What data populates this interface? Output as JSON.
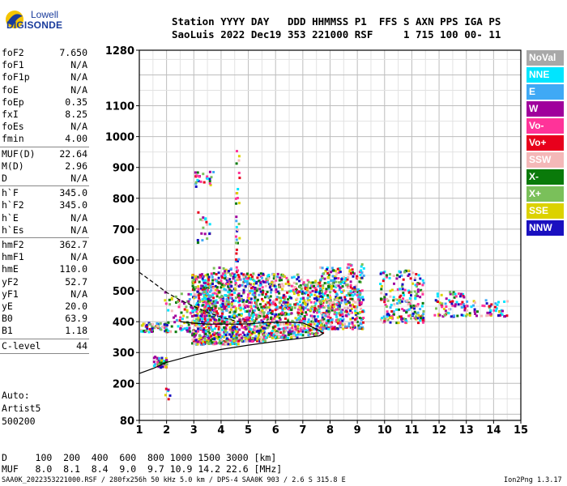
{
  "logo": {
    "line1": "Lowell",
    "line2": "DIGISONDE"
  },
  "header": {
    "line1": "Station YYYY DAY   DDD HHMMSS P1  FFS S AXN PPS IGA PS",
    "line2": "SaoLuis 2022 Dec19 353 221000 RSF     1 715 100 00- 11"
  },
  "params_group1": [
    {
      "k": "foF2",
      "v": "7.650"
    },
    {
      "k": "foF1",
      "v": "N/A"
    },
    {
      "k": "foF1p",
      "v": "N/A"
    },
    {
      "k": "foE",
      "v": "N/A"
    },
    {
      "k": "foEp",
      "v": "0.35"
    },
    {
      "k": "fxI",
      "v": "8.25"
    },
    {
      "k": "foEs",
      "v": "N/A"
    },
    {
      "k": "fmin",
      "v": "4.00"
    }
  ],
  "params_group2": [
    {
      "k": "MUF(D)",
      "v": "22.64"
    },
    {
      "k": "M(D)",
      "v": "2.96"
    },
    {
      "k": "D",
      "v": "N/A"
    }
  ],
  "params_group3": [
    {
      "k": "h`F",
      "v": "345.0"
    },
    {
      "k": "h`F2",
      "v": "345.0"
    },
    {
      "k": "h`E",
      "v": "N/A"
    },
    {
      "k": "h`Es",
      "v": "N/A"
    }
  ],
  "params_group4": [
    {
      "k": "hmF2",
      "v": "362.7"
    },
    {
      "k": "hmF1",
      "v": "N/A"
    },
    {
      "k": "hmE",
      "v": "110.0"
    },
    {
      "k": "yF2",
      "v": "52.7"
    },
    {
      "k": "yF1",
      "v": "N/A"
    },
    {
      "k": "yE",
      "v": "20.0"
    },
    {
      "k": "B0",
      "v": "63.9"
    },
    {
      "k": "B1",
      "v": "1.18"
    }
  ],
  "params_group5": [
    {
      "k": "C-level",
      "v": "44"
    }
  ],
  "auto": {
    "line1": "Auto:",
    "line2": "Artist5",
    "line3": "500200"
  },
  "muf_table": {
    "d_line": "D     100  200  400  600  800 1000 1500 3000 [km]",
    "muf_line": "MUF   8.0  8.1  8.4  9.0  9.7 10.9 14.2 22.6 [MHz]"
  },
  "bottom": {
    "left": "SAA0K_2022353221000.RSF / 280fx256h 50 kHz 5.0 km / DPS-4 SAA0K 903 / 2.6 S 315.8 E",
    "right": "Ion2Png 1.3.17"
  },
  "legend": [
    {
      "label": "NoVal",
      "color": "#a8a8a8"
    },
    {
      "label": "NNE",
      "color": "#00e5ff"
    },
    {
      "label": "E",
      "color": "#3fa9f5"
    },
    {
      "label": "W",
      "color": "#a0009c"
    },
    {
      "label": "Vo-",
      "color": "#ff3399"
    },
    {
      "label": "Vo+",
      "color": "#e8001c"
    },
    {
      "label": "SSW",
      "color": "#f4b8b8"
    },
    {
      "label": "X-",
      "color": "#0a7a0a"
    },
    {
      "label": "X+",
      "color": "#7ac05a"
    },
    {
      "label": "SSE",
      "color": "#dcd200"
    },
    {
      "label": "NNW",
      "color": "#1a10c0"
    }
  ],
  "chart_data": {
    "type": "scatter",
    "xlim": [
      1,
      15
    ],
    "ylim": [
      80,
      1280
    ],
    "x_ticks": [
      1,
      2,
      3,
      4,
      5,
      6,
      7,
      8,
      9,
      10,
      11,
      12,
      13,
      14,
      15
    ],
    "y_ticks": [
      80,
      200,
      300,
      400,
      500,
      600,
      700,
      800,
      900,
      1000,
      1100,
      1280
    ],
    "grid": true,
    "clusters": [
      {
        "x": [
          1.5,
          2.0
        ],
        "y": [
          255,
          290
        ],
        "n": 40
      },
      {
        "x": [
          1.0,
          2.0
        ],
        "y": [
          370,
          400
        ],
        "n": 60
      },
      {
        "x": [
          1.9,
          2.9
        ],
        "y": [
          370,
          500
        ],
        "n": 70
      },
      {
        "x": [
          2.9,
          3.6
        ],
        "y": [
          330,
          560
        ],
        "n": 380
      },
      {
        "x": [
          3.6,
          4.6
        ],
        "y": [
          330,
          580
        ],
        "n": 420
      },
      {
        "x": [
          4.6,
          5.6
        ],
        "y": [
          340,
          560
        ],
        "n": 360
      },
      {
        "x": [
          5.6,
          6.8
        ],
        "y": [
          350,
          560
        ],
        "n": 360
      },
      {
        "x": [
          6.8,
          7.7
        ],
        "y": [
          360,
          540
        ],
        "n": 240
      },
      {
        "x": [
          7.6,
          8.6
        ],
        "y": [
          380,
          580
        ],
        "n": 300
      },
      {
        "x": [
          8.6,
          9.2
        ],
        "y": [
          380,
          590
        ],
        "n": 150
      },
      {
        "x": [
          9.8,
          11.4
        ],
        "y": [
          400,
          570
        ],
        "n": 200
      },
      {
        "x": [
          11.8,
          13.0
        ],
        "y": [
          420,
          500
        ],
        "n": 70
      },
      {
        "x": [
          12.9,
          14.6
        ],
        "y": [
          420,
          480
        ],
        "n": 55
      },
      {
        "x": [
          3.0,
          3.7
        ],
        "y": [
          840,
          890
        ],
        "n": 25
      },
      {
        "x": [
          3.1,
          3.6
        ],
        "y": [
          650,
          760
        ],
        "n": 20
      },
      {
        "x": [
          4.5,
          4.65
        ],
        "y": [
          600,
          960
        ],
        "n": 30
      },
      {
        "x": [
          1.9,
          2.1
        ],
        "y": [
          140,
          200
        ],
        "n": 6
      }
    ],
    "profile_solid": [
      [
        1,
        232
      ],
      [
        1.5,
        248
      ],
      [
        2,
        268
      ],
      [
        3,
        292
      ],
      [
        4,
        310
      ],
      [
        5,
        324
      ],
      [
        6,
        336
      ],
      [
        7,
        347
      ],
      [
        7.6,
        354
      ],
      [
        7.75,
        362
      ],
      [
        7.6,
        372
      ],
      [
        7.4,
        380
      ],
      [
        7.2,
        389
      ],
      [
        7,
        396
      ],
      [
        6.5,
        398
      ],
      [
        6,
        398
      ],
      [
        5.5,
        396
      ],
      [
        5,
        393
      ],
      [
        4.5,
        392
      ],
      [
        4,
        392
      ],
      [
        3.5,
        392
      ],
      [
        3,
        395
      ],
      [
        2.5,
        400
      ]
    ],
    "profile_dashed": [
      [
        1,
        560
      ],
      [
        1.5,
        528
      ],
      [
        2,
        495
      ],
      [
        2.5,
        470
      ],
      [
        3,
        450
      ],
      [
        3.5,
        430
      ],
      [
        4,
        415
      ],
      [
        4.5,
        403
      ],
      [
        5,
        397
      ]
    ]
  }
}
